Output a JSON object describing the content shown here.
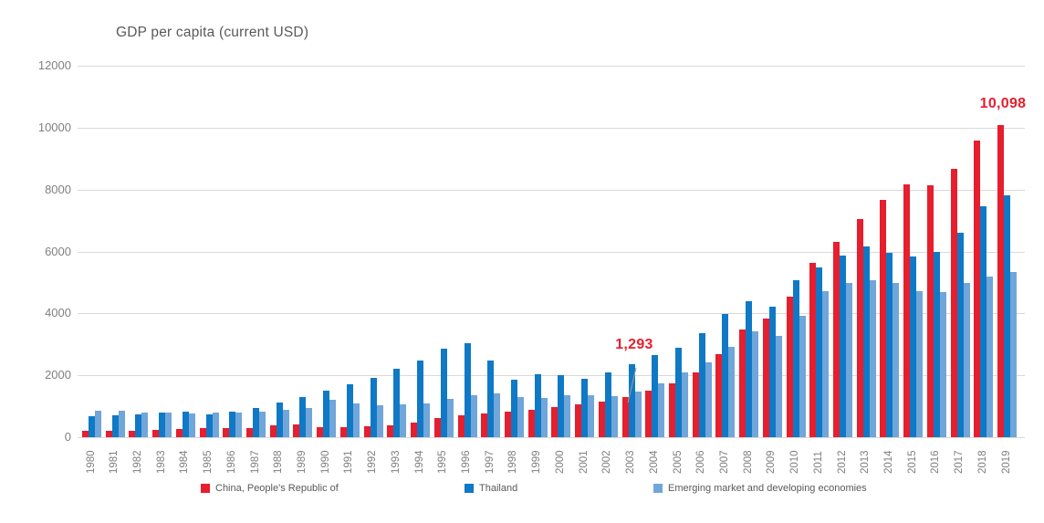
{
  "chart_data": {
    "type": "bar",
    "title": "GDP per capita (current USD)",
    "grid": "horizontal-only",
    "legend_position": "bottom",
    "ylim": [
      0,
      12000
    ],
    "yticks": [
      0,
      2000,
      4000,
      6000,
      8000,
      10000,
      12000
    ],
    "categories": [
      1980,
      1981,
      1982,
      1983,
      1984,
      1985,
      1986,
      1987,
      1988,
      1989,
      1990,
      1991,
      1992,
      1993,
      1994,
      1995,
      1996,
      1997,
      1998,
      1999,
      2000,
      2001,
      2002,
      2003,
      2004,
      2005,
      2006,
      2007,
      2008,
      2009,
      2010,
      2011,
      2012,
      2013,
      2014,
      2015,
      2016,
      2017,
      2018,
      2019
    ],
    "series": [
      {
        "name": "China, People's Republic of",
        "color": "#e61e2d",
        "values": [
          195,
          197,
          203,
          227,
          251,
          294,
          282,
          301,
          370,
          407,
          318,
          333,
          366,
          377,
          473,
          610,
          709,
          781,
          829,
          873,
          959,
          1053,
          1148,
          1293,
          1509,
          1753,
          2099,
          2695,
          3471,
          3838,
          4550,
          5618,
          6317,
          7051,
          7679,
          8167,
          8148,
          8663,
          9580,
          10098
        ]
      },
      {
        "name": "Thailand",
        "color": "#0f79c6",
        "values": [
          683,
          722,
          743,
          798,
          818,
          748,
          813,
          937,
          1123,
          1295,
          1509,
          1716,
          1927,
          2208,
          2491,
          2847,
          3044,
          2468,
          1845,
          2033,
          2008,
          1893,
          2096,
          2359,
          2660,
          2894,
          3369,
          3973,
          4379,
          4213,
          5080,
          5492,
          5861,
          6170,
          5952,
          5840,
          5995,
          6595,
          7445,
          7808
        ]
      },
      {
        "name": "Emerging market and developing economies",
        "color": "#70a6d9",
        "values": [
          850,
          865,
          800,
          785,
          775,
          785,
          800,
          830,
          890,
          950,
          1220,
          1100,
          1030,
          1060,
          1100,
          1235,
          1350,
          1420,
          1295,
          1255,
          1363,
          1343,
          1325,
          1470,
          1735,
          2090,
          2420,
          2930,
          3430,
          3285,
          3930,
          4730,
          4990,
          5075,
          4970,
          4705,
          4685,
          4970,
          5195,
          5350
        ]
      }
    ],
    "annotations": [
      {
        "text": "1,293",
        "series": "China, People's Republic of",
        "year": 2003,
        "value": 1293
      },
      {
        "text": "10,098",
        "series": "China, People's Republic of",
        "year": 2019,
        "value": 10098
      }
    ]
  },
  "colors": {
    "china": "#e61e2d",
    "thailand": "#0f79c6",
    "emde": "#70a6d9",
    "grid": "#d9d9d9",
    "axis_text": "#808080",
    "title_text": "#595959",
    "annotation_text": "#e61e2d",
    "leader_line": "#9e9e9e"
  }
}
